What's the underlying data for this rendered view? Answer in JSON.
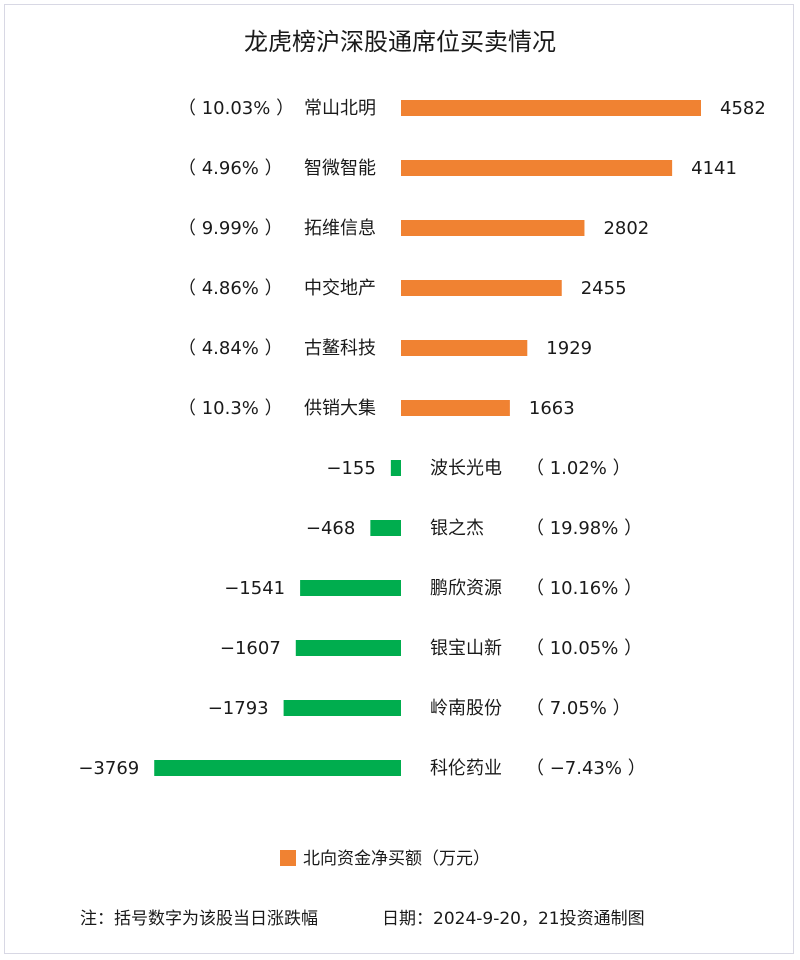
{
  "chart_data": {
    "type": "bar",
    "orientation": "horizontal",
    "title": "龙虎榜沪深股通席位买卖情况",
    "categories": [
      "常山北明",
      "智微智能",
      "拓维信息",
      "中交地产",
      "古鳌科技",
      "供销大集",
      "波长光电",
      "银之杰",
      "鹏欣资源",
      "银宝山新",
      "岭南股份",
      "科伦药业"
    ],
    "values": [
      4582,
      4141,
      2802,
      2455,
      1929,
      1663,
      -155,
      -468,
      -1541,
      -1607,
      -1793,
      -3769
    ],
    "pct_change": [
      "（ 10.03% ）",
      "（ 4.96% ）",
      "（ 9.99% ）",
      "（ 4.86% ）",
      "（ 4.84% ）",
      "（ 10.3% ）",
      "（ 1.02% ）",
      "（ 19.98% ）",
      "（ 10.16% ）",
      "（ 10.05% ）",
      "（ 7.05% ）",
      "（ −7.43% ）"
    ],
    "value_labels": [
      "4582",
      "4141",
      "2802",
      "2455",
      "1929",
      "1663",
      "−155",
      "−468",
      "−1541",
      "−1607",
      "−1793",
      "−3769"
    ],
    "series": [
      {
        "name": "北向资金净买额（万元）"
      }
    ],
    "colors": {
      "positive": "#f08232",
      "negative": "#00ad4e"
    },
    "legend_position": "bottom",
    "grid": false
  },
  "footer": {
    "note": "注：括号数字为该股当日涨跌幅",
    "date_source": "日期：2024-9-20，21投资通制图"
  }
}
